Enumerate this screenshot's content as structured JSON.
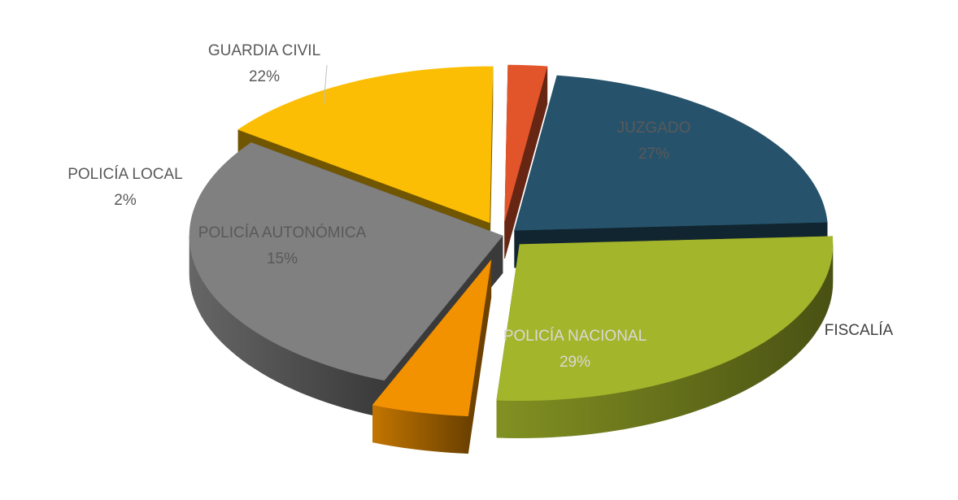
{
  "chart_data": {
    "type": "pie",
    "three_d": true,
    "exploded": true,
    "legend": "none",
    "title": "",
    "slices": [
      {
        "key": "juzgado",
        "name": "JUZGADO",
        "value": 27,
        "label": "27%",
        "color": "#A3B52A"
      },
      {
        "key": "fiscalia",
        "name": "FISCALÍA",
        "value": 5,
        "label": "",
        "color": "#F39200"
      },
      {
        "key": "policia-nacional",
        "name": "POLICÍA NACIONAL",
        "value": 29,
        "label": "29%",
        "color": "#808080"
      },
      {
        "key": "policia-autonomica",
        "name": "POLICÍA AUTONÓMICA",
        "value": 15,
        "label": "15%",
        "color": "#FBBE04"
      },
      {
        "key": "policia-local",
        "name": "POLICÍA LOCAL",
        "value": 2,
        "label": "2%",
        "color": "#E2542A"
      },
      {
        "key": "guardia-civil",
        "name": "GUARDIA CIVIL",
        "value": 22,
        "label": "22%",
        "color": "#26536B"
      }
    ]
  }
}
